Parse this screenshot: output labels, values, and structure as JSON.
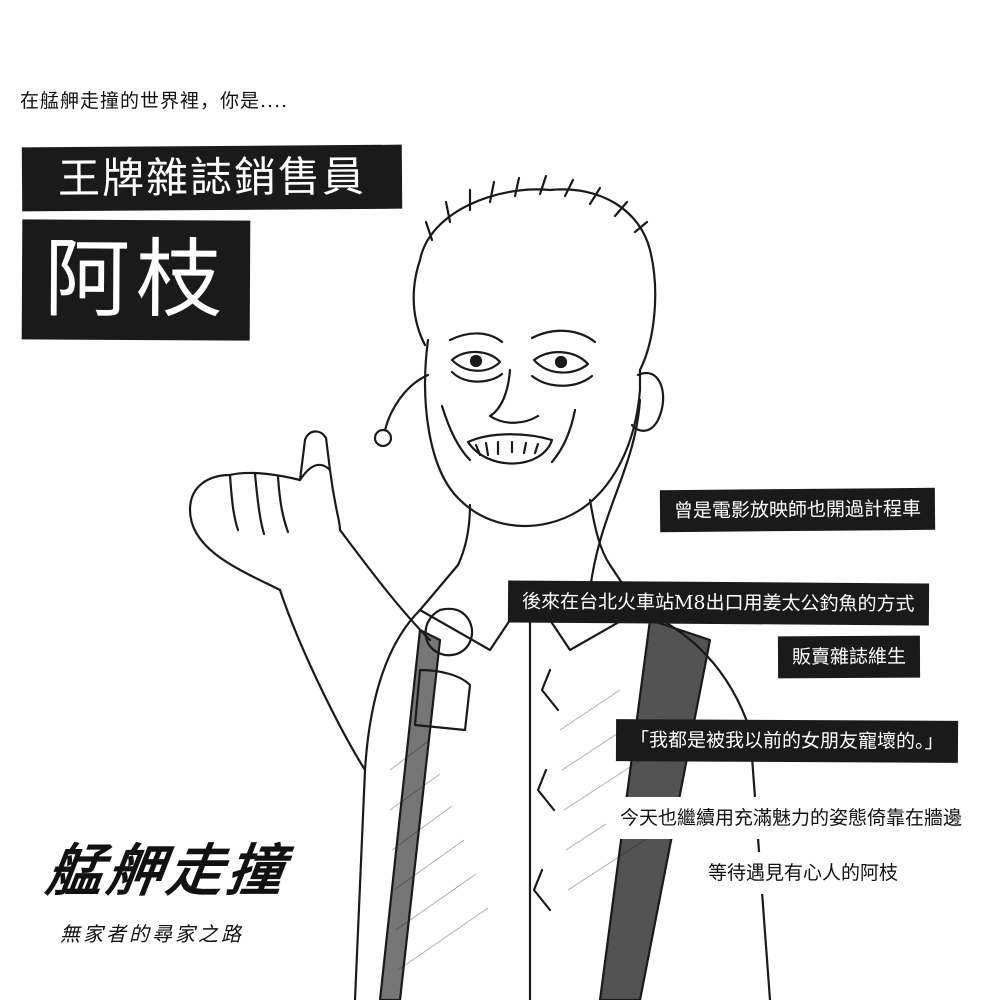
{
  "intro": "在艋舺走撞的世界裡，你是....",
  "role": "王牌雜誌銷售員",
  "name": "阿枝",
  "captions": [
    "曾是電影放映師也開過計程車",
    "後來在台北火車站M8出口用姜太公釣魚的方式",
    "販賣雜誌維生",
    "「我都是被我以前的女朋友寵壞的。」",
    "今天也繼續用充滿魅力的姿態倚靠在牆邊",
    "等待遇見有心人的阿枝"
  ],
  "logo": {
    "title": "艋舺走撞",
    "subtitle": "無家者的尋家之路"
  },
  "colors": {
    "label_bg": "#1a1a1a",
    "label_text": "#ffffff",
    "ink": "#111111"
  }
}
